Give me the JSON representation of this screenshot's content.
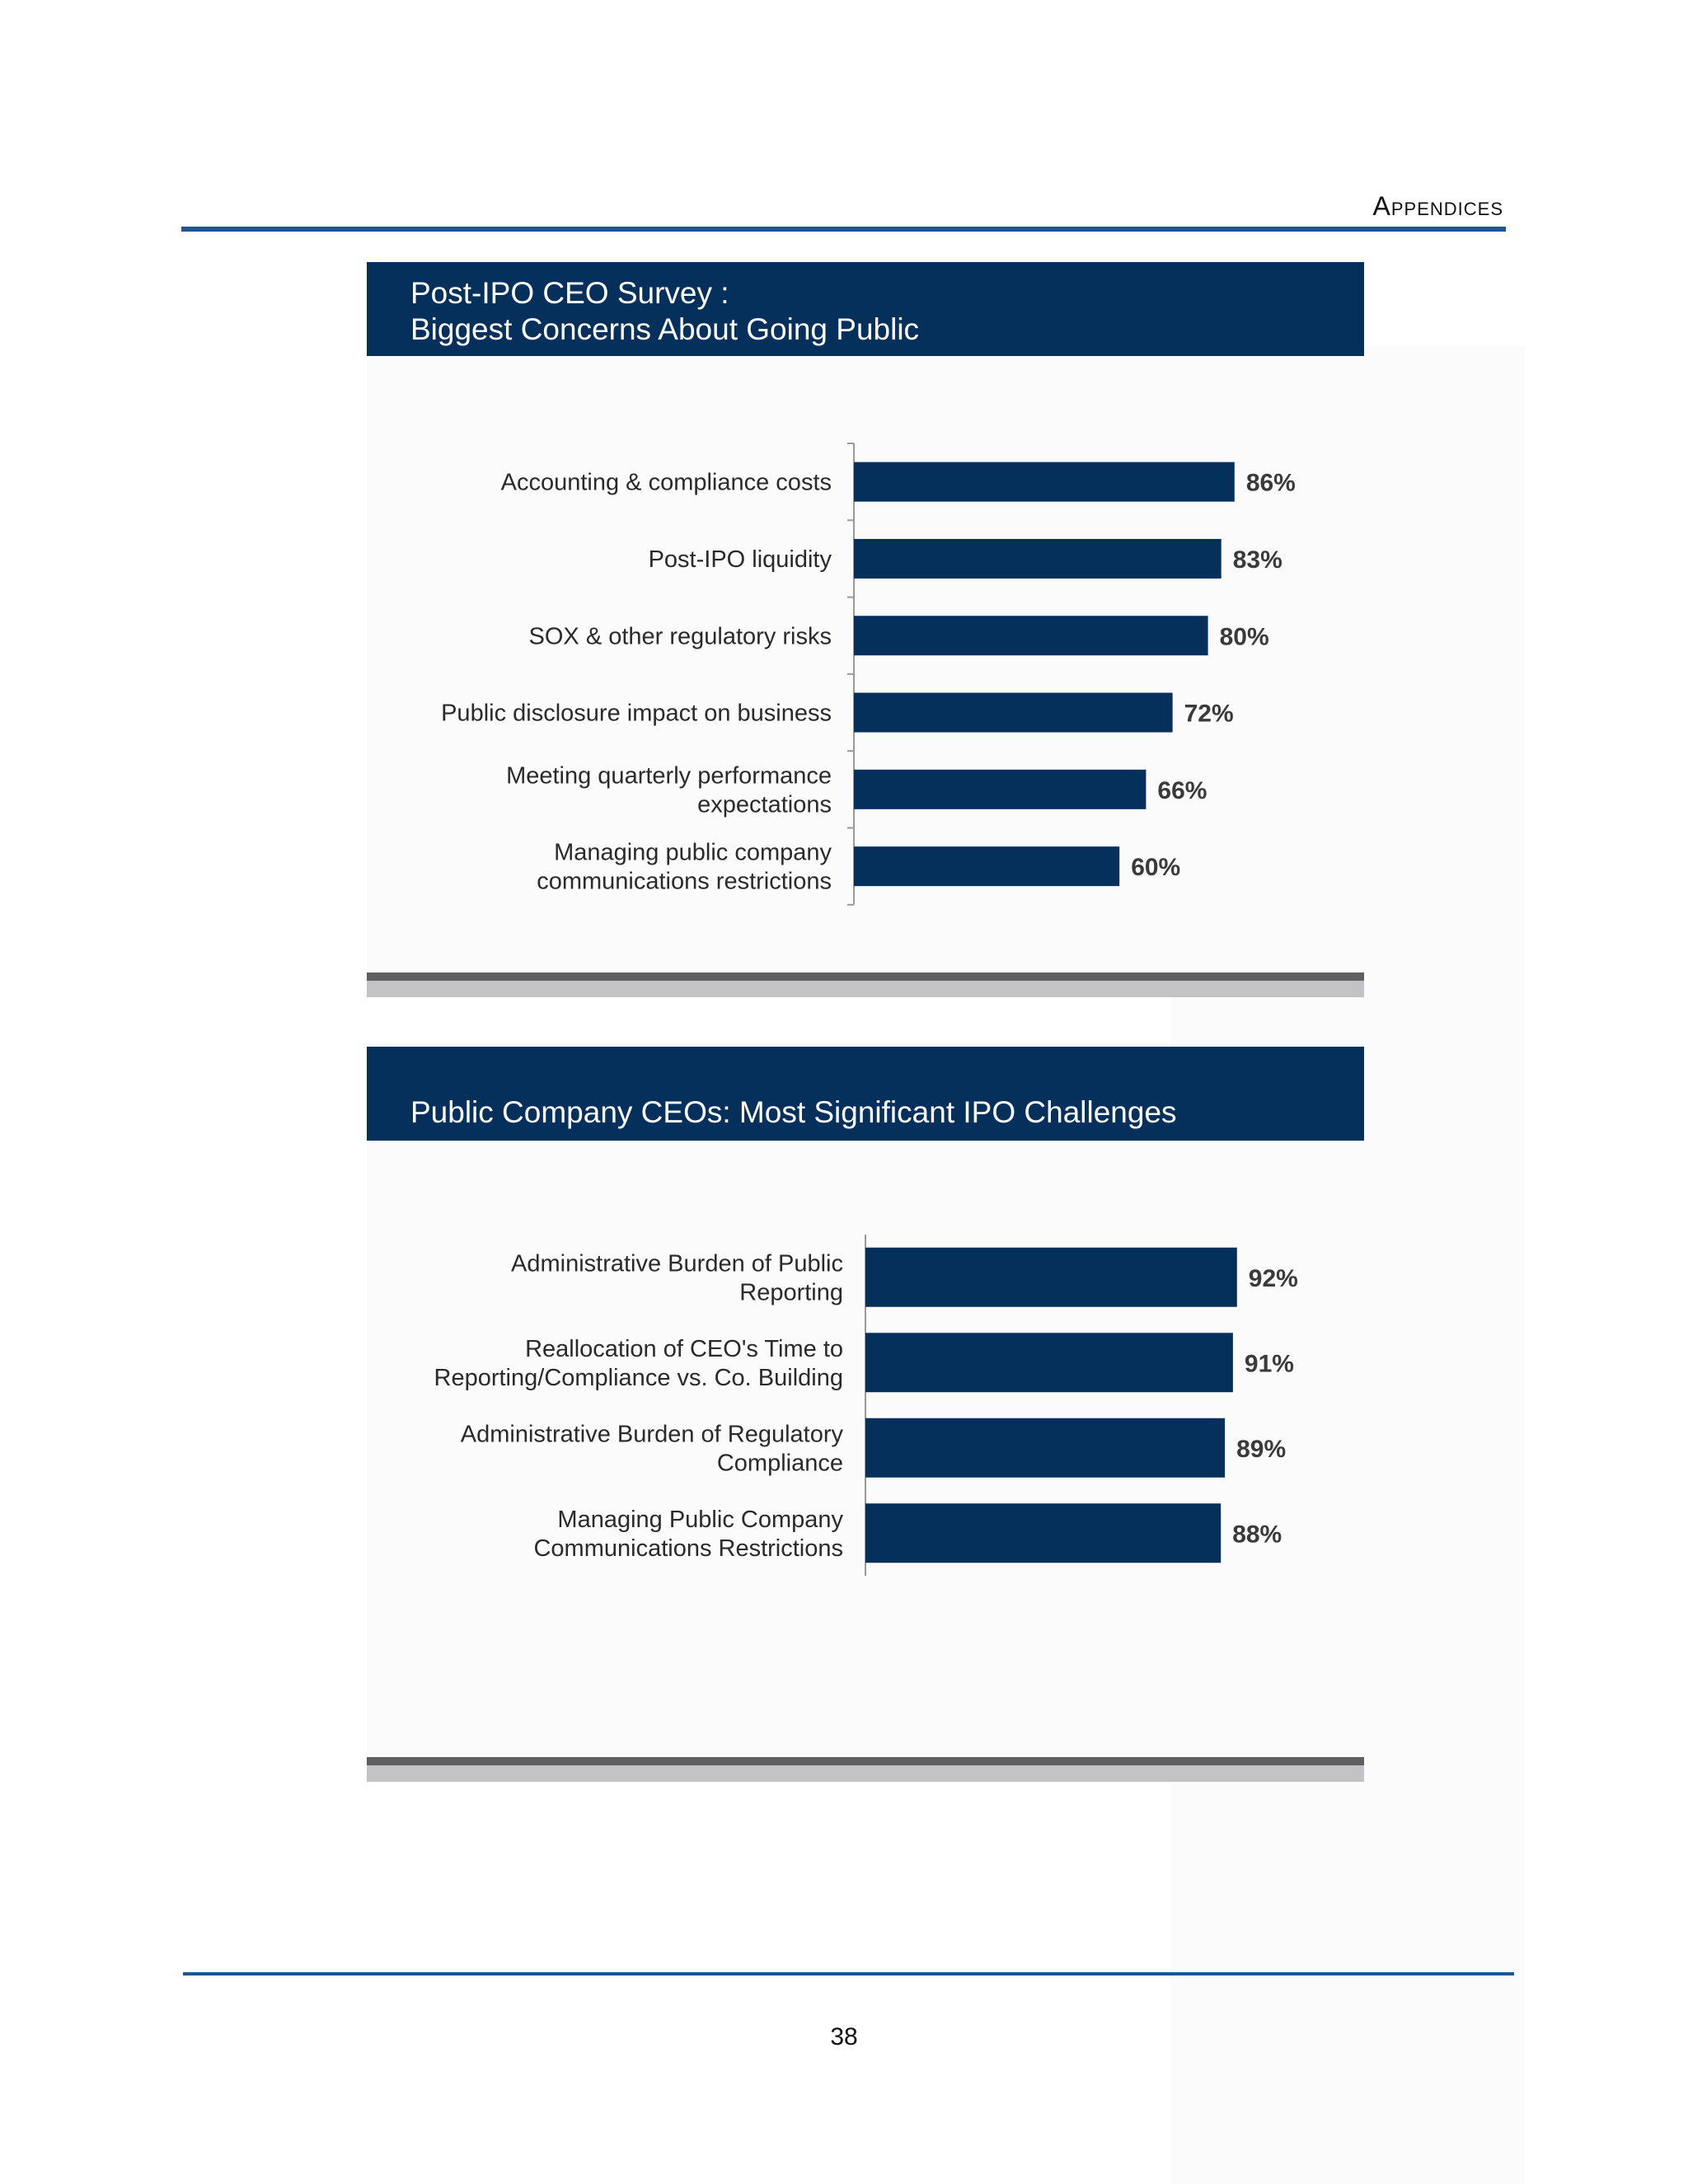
{
  "page": {
    "section_header": "Appendices",
    "page_number": "38"
  },
  "colors": {
    "bar": "#06305c",
    "title_bg": "#06305c",
    "rule": "#1f5592"
  },
  "chart_data": [
    {
      "type": "bar",
      "orientation": "horizontal",
      "title": "Post-IPO CEO Survey :\nBiggest Concerns About Going Public",
      "title_lines": [
        "Post-IPO CEO Survey :",
        "Biggest Concerns About Going Public"
      ],
      "categories": [
        "Accounting & compliance costs",
        "Post-IPO liquidity",
        "SOX & other regulatory risks",
        "Public disclosure impact on business",
        "Meeting quarterly performance\nexpectations",
        "Managing public company\ncommunications restrictions"
      ],
      "values": [
        86,
        83,
        80,
        72,
        66,
        60
      ],
      "labels": [
        "86%",
        "83%",
        "80%",
        "72%",
        "66%",
        "60%"
      ],
      "unit": "%",
      "xlim": [
        0,
        100
      ]
    },
    {
      "type": "bar",
      "orientation": "horizontal",
      "title": "Public Company CEOs: Most Significant IPO Challenges",
      "title_lines": [
        "Public Company CEOs: Most Significant IPO Challenges"
      ],
      "categories": [
        "Administrative Burden of Public\nReporting",
        "Reallocation of CEO's Time to\nReporting/Compliance vs. Co. Building",
        "Administrative Burden of Regulatory\nCompliance",
        "Managing Public Company\nCommunications Restrictions"
      ],
      "values": [
        92,
        91,
        89,
        88
      ],
      "labels": [
        "92%",
        "91%",
        "89%",
        "88%"
      ],
      "unit": "%",
      "xlim": [
        0,
        100
      ]
    }
  ]
}
